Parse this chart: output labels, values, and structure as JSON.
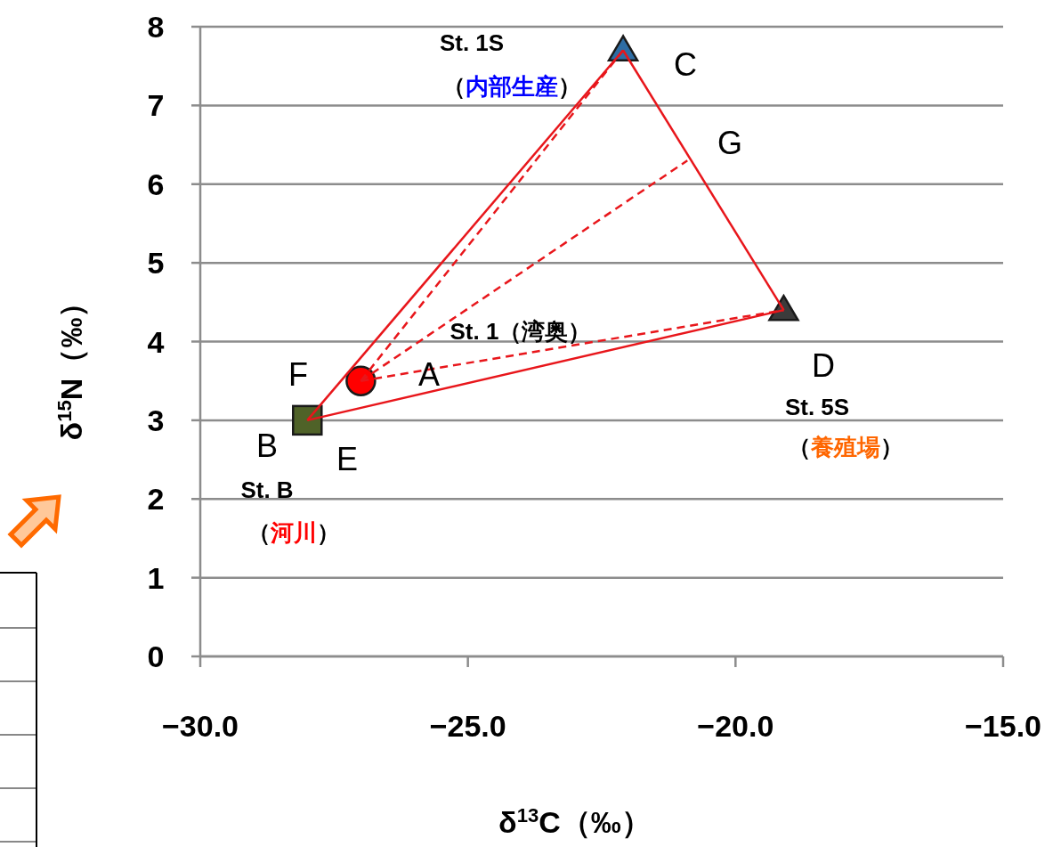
{
  "chart_data": {
    "type": "scatter",
    "xlabel": "δ$^{13}$C（‰）",
    "ylabel": "δ$^{15}$N（‰）",
    "xlim": [
      -30,
      -15
    ],
    "ylim": [
      0,
      8
    ],
    "xticks": [
      {
        "value": -30,
        "label": "−30.0"
      },
      {
        "value": -25,
        "label": "−25.0"
      },
      {
        "value": -20,
        "label": "−20.0"
      },
      {
        "value": -15,
        "label": "−15.0"
      }
    ],
    "yticks": [
      0,
      1,
      2,
      3,
      4,
      5,
      6,
      7,
      8
    ],
    "grid": "y",
    "series": [
      {
        "type": "line",
        "color": "#e8161b",
        "line_style": "solid",
        "marker": "none",
        "x": [
          -28,
          -22.1
        ],
        "values": [
          3,
          7.7
        ]
      },
      {
        "type": "line",
        "color": "#e8161b",
        "line_style": "solid",
        "marker": "none",
        "x": [
          -22.1,
          -19.1
        ],
        "values": [
          7.7,
          4.4
        ]
      },
      {
        "type": "line",
        "color": "#e8161b",
        "line_style": "solid",
        "marker": "none",
        "x": [
          -28,
          -19.1
        ],
        "values": [
          3,
          4.4
        ]
      },
      {
        "type": "line",
        "color": "#e8161b",
        "line_style": "dashed",
        "marker": "none",
        "x": [
          -27,
          -22.1
        ],
        "values": [
          3.5,
          7.7
        ]
      },
      {
        "type": "line",
        "color": "#e8161b",
        "line_style": "dashed",
        "marker": "none",
        "x": [
          -27,
          -20.9
        ],
        "values": [
          3.5,
          6.3
        ]
      },
      {
        "type": "line",
        "color": "#e8161b",
        "line_style": "dashed",
        "marker": "none",
        "x": [
          -27,
          -19.1
        ],
        "values": [
          3.5,
          4.4
        ]
      },
      {
        "color": "#4f6228",
        "marker": "square",
        "x": [
          -28
        ],
        "values": [
          3
        ]
      },
      {
        "color": "#ff0000",
        "marker": "circle",
        "x": [
          -27
        ],
        "values": [
          3.5
        ]
      },
      {
        "color": "#2e6da4",
        "marker": "triangle",
        "x": [
          -22.1
        ],
        "values": [
          7.7
        ]
      },
      {
        "color": "#3b3b3b",
        "marker": "triangle",
        "x": [
          -19.1
        ],
        "values": [
          4.4
        ]
      }
    ],
    "annotations": [
      "A",
      "B",
      "C",
      "D",
      "E",
      "F",
      "G",
      "St. 1S",
      "（内部生産）",
      "St. 1（湾奥）",
      "St. 5S",
      "（養殖場）",
      "St. B",
      "（河川）"
    ]
  }
}
